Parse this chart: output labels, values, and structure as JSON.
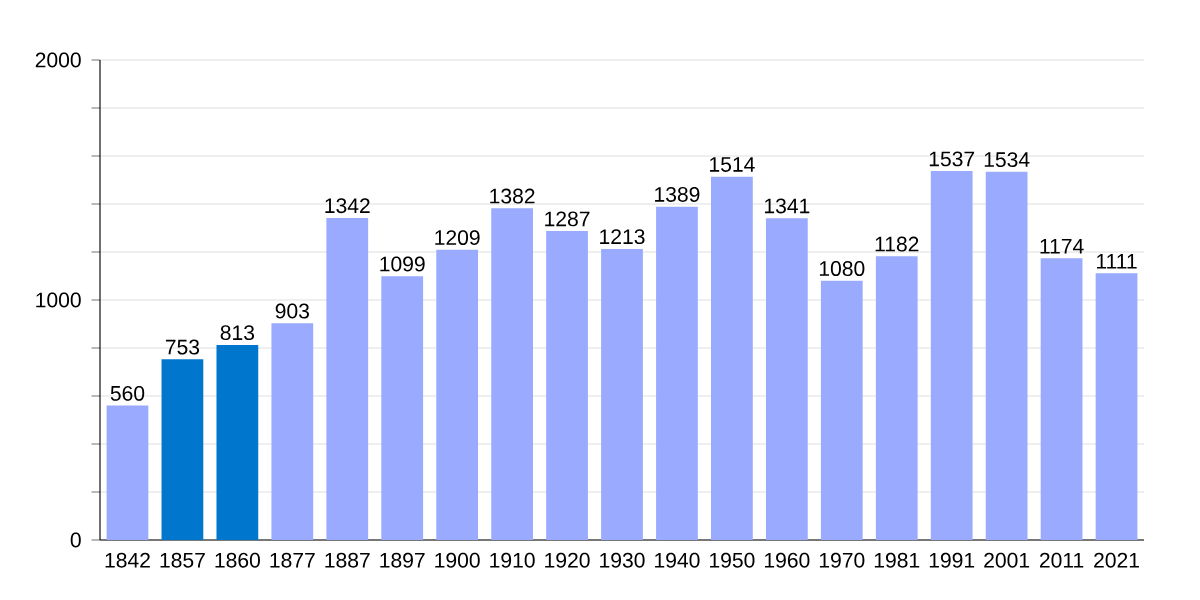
{
  "chart_data": {
    "type": "bar",
    "categories": [
      "1842",
      "1857",
      "1860",
      "1877",
      "1887",
      "1897",
      "1900",
      "1910",
      "1920",
      "1930",
      "1940",
      "1950",
      "1960",
      "1970",
      "1981",
      "1991",
      "2001",
      "2011",
      "2021"
    ],
    "values": [
      560,
      753,
      813,
      903,
      1342,
      1099,
      1209,
      1382,
      1287,
      1213,
      1389,
      1514,
      1341,
      1080,
      1182,
      1537,
      1534,
      1174,
      1111
    ],
    "colors": [
      "#99aaff",
      "#0077cc",
      "#0077cc",
      "#99aaff",
      "#99aaff",
      "#99aaff",
      "#99aaff",
      "#99aaff",
      "#99aaff",
      "#99aaff",
      "#99aaff",
      "#99aaff",
      "#99aaff",
      "#99aaff",
      "#99aaff",
      "#99aaff",
      "#99aaff",
      "#99aaff",
      "#99aaff"
    ],
    "ylim": [
      0,
      2000
    ],
    "yticks": [
      0,
      {
        "value": 200,
        "label": null
      },
      {
        "value": 400,
        "label": null
      },
      {
        "value": 600,
        "label": null
      },
      {
        "value": 800,
        "label": null
      },
      1000,
      {
        "value": 1200,
        "label": null
      },
      {
        "value": 1400,
        "label": null
      },
      {
        "value": 1600,
        "label": null
      },
      {
        "value": 1800,
        "label": null
      },
      2000
    ],
    "grid": "y",
    "data_labels": true
  }
}
